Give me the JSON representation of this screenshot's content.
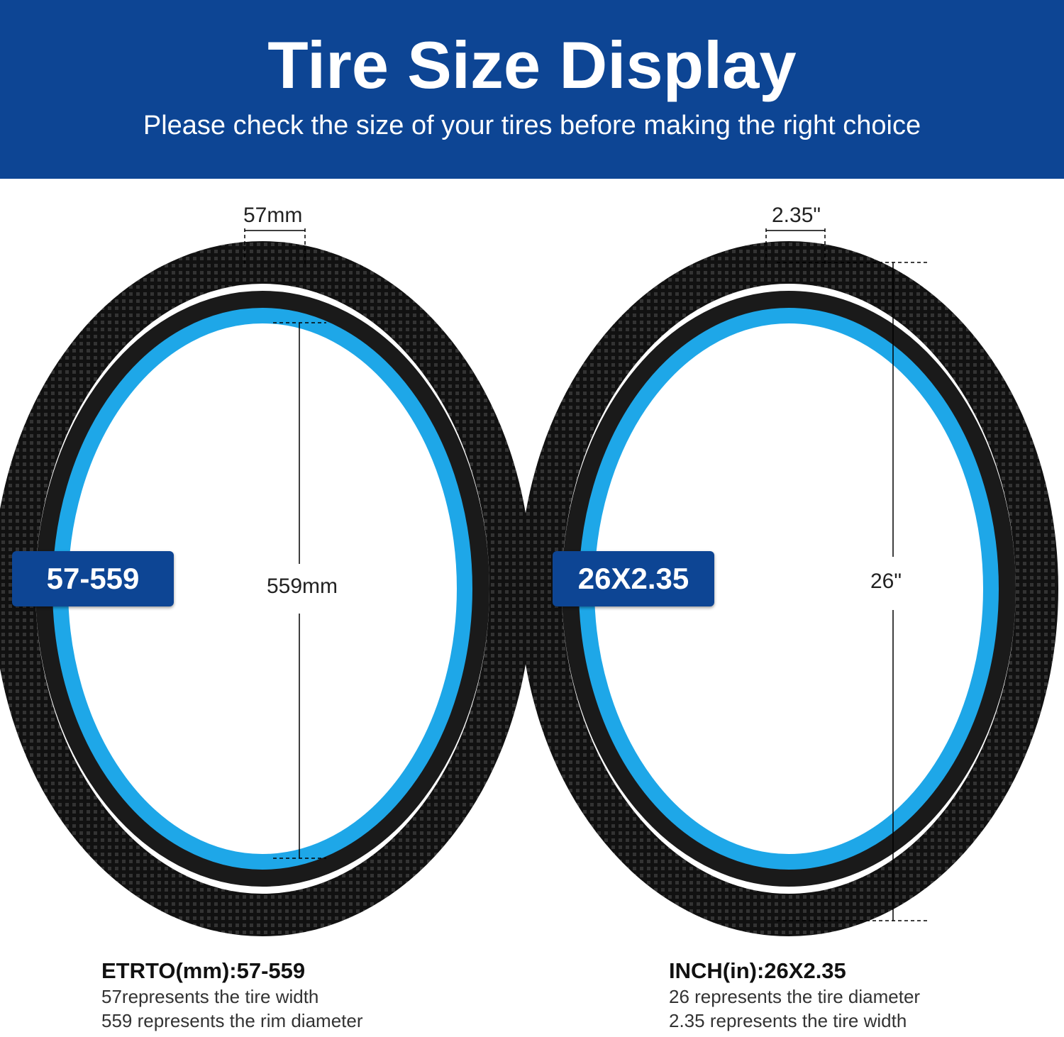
{
  "header": {
    "title": "Tire Size Display",
    "subtitle": "Please check the size of your tires before making the right choice"
  },
  "tires": [
    {
      "badge": "57-559",
      "width_label": "57mm",
      "diameter_label": "559mm",
      "spec_title": "ETRTO(mm):57-559",
      "lines": [
        "57represents the tire width",
        "559 represents the rim diameter"
      ]
    },
    {
      "badge": "26X2.35",
      "width_label": "2.35\"",
      "diameter_label": "26\"",
      "spec_title": "INCH(in):26X2.35",
      "lines": [
        "26 represents the tire diameter",
        "2.35 represents the tire width"
      ]
    }
  ]
}
